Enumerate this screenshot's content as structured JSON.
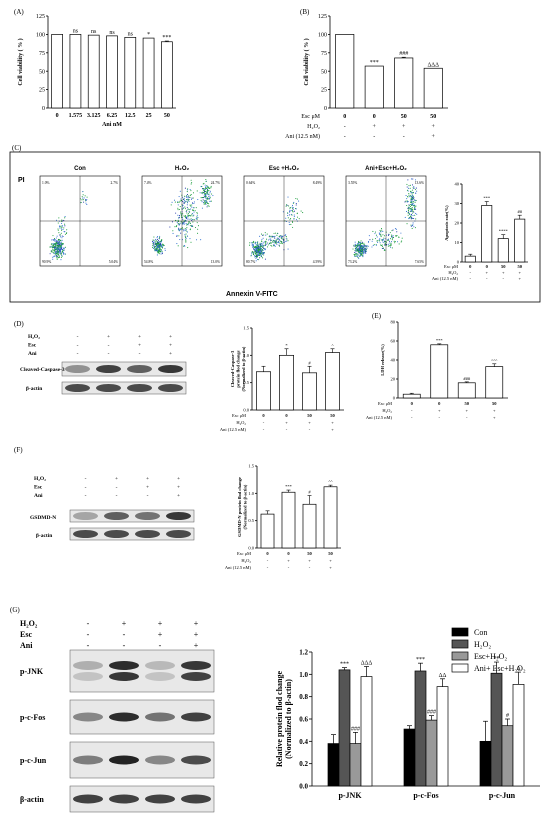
{
  "panels": {
    "A": "(A)",
    "B": "(B)",
    "C": "(C)",
    "D": "(D)",
    "E": "(E)",
    "F": "(F)",
    "G": "(G)"
  },
  "treat": {
    "esc_um": "Esc μM",
    "h2o2": "H₂O₂",
    "ani_12_5": "Ani (12.5 nM)",
    "h2o2_row": "H₂O₂",
    "esc_row": "Esc",
    "ani_row": "Ani",
    "plus": "+",
    "minus": "-"
  },
  "blots": {
    "cleaved_caspase3": "Cleaved-Caspase-3",
    "beta_actin": "β-actin",
    "gsdmd_n": "GSDMD-N",
    "p_jnk": "p-JNK",
    "p_c_fos": "p-c-Fos",
    "p_c_jun": "p-c-Jun"
  },
  "flow": {
    "titles": [
      "Con",
      "H₂O₂",
      "Esc +H₂O₂",
      "Ani+Esc+H₂O₂"
    ],
    "y_axis": "PI",
    "x_axis": "Annexin V-FITC",
    "quadrants": [
      [
        "1.0%",
        "2.7%",
        "90.9%",
        "5.04%"
      ],
      [
        "7.4%",
        "24.7%",
        "54.8%",
        "13.0%"
      ],
      [
        "0.64%",
        "8.49%",
        "80.7%",
        "4.59%"
      ],
      [
        "3.55%",
        "13.6%",
        "73.2%",
        "7.65%"
      ]
    ]
  },
  "chart_data": [
    {
      "id": "A",
      "type": "bar",
      "categories": [
        "0",
        "1.575",
        "3.125",
        "6.25",
        "12.5",
        "25",
        "50"
      ],
      "values": [
        100,
        100,
        99,
        98,
        96,
        95,
        90
      ],
      "annotations": [
        "",
        "ns",
        "ns",
        "ns",
        "ns",
        "*",
        "***"
      ],
      "ylabel": "Cell viability ( % )",
      "xlabel": "Ani nM",
      "ylim": [
        0,
        125
      ],
      "yticks": [
        "0",
        "25",
        "50",
        "75",
        "100",
        "125"
      ]
    },
    {
      "id": "B",
      "type": "bar",
      "categories": [
        "0",
        "0",
        "50",
        "50"
      ],
      "values": [
        100,
        57,
        68,
        54
      ],
      "annotations": [
        "",
        "***",
        "###",
        "ΔΔΔ"
      ],
      "ylabel": "Cell viability ( % )",
      "row_esc": [
        "0",
        "0",
        "50",
        "50"
      ],
      "row_h2o2": [
        "-",
        "+",
        "+",
        "+"
      ],
      "row_ani": [
        "-",
        "-",
        "-",
        "+"
      ],
      "ylim": [
        0,
        125
      ],
      "yticks": [
        "0",
        "25",
        "50",
        "75",
        "100",
        "125"
      ]
    },
    {
      "id": "C",
      "type": "bar",
      "categories": [
        "0",
        "0",
        "50",
        "50"
      ],
      "values": [
        3,
        29,
        12,
        22
      ],
      "annotations": [
        "",
        "***",
        "****",
        "##"
      ],
      "ylabel": "Apoptosis rate(%)",
      "row_esc": [
        "0",
        "0",
        "50",
        "50"
      ],
      "row_h2o2": [
        "-",
        "+",
        "+",
        "+"
      ],
      "row_ani": [
        "-",
        "-",
        "-",
        "+"
      ],
      "ylim": [
        0,
        40
      ],
      "yticks": [
        "0",
        "10",
        "20",
        "30",
        "40"
      ]
    },
    {
      "id": "D",
      "type": "bar",
      "categories": [
        "0",
        "0",
        "50",
        "50"
      ],
      "values": [
        0.7,
        1.0,
        0.68,
        1.05
      ],
      "annotations": [
        "",
        "*",
        "#",
        "^"
      ],
      "ylabel": "Cleaved-Caspase-3 protein flod change (Normalized to β-actin)",
      "row_esc": [
        "0",
        "0",
        "50",
        "50"
      ],
      "row_h2o2": [
        "-",
        "+",
        "+",
        "+"
      ],
      "row_ani": [
        "-",
        "-",
        "-",
        "+"
      ],
      "ylim": [
        0,
        1.5
      ],
      "yticks": [
        "0.0",
        "0.5",
        "1.0",
        "1.5"
      ]
    },
    {
      "id": "E",
      "type": "bar",
      "categories": [
        "0",
        "0",
        "50",
        "50"
      ],
      "values": [
        4,
        56,
        16,
        33
      ],
      "annotations": [
        "",
        "***",
        "###",
        "^^^"
      ],
      "ylabel": "LDH release(%)",
      "row_esc": [
        "0",
        "0",
        "50",
        "50"
      ],
      "row_h2o2": [
        "-",
        "+",
        "+",
        "+"
      ],
      "row_ani": [
        "-",
        "-",
        "-",
        "+"
      ],
      "ylim": [
        0,
        80
      ],
      "yticks": [
        "0",
        "20",
        "40",
        "60",
        "80"
      ]
    },
    {
      "id": "F",
      "type": "bar",
      "categories": [
        "0",
        "0",
        "50",
        "50"
      ],
      "values": [
        0.62,
        1.02,
        0.8,
        1.12
      ],
      "annotations": [
        "",
        "***",
        "#",
        "^^"
      ],
      "ylabel": "GSDMD-N protein flod change (Normalized to β-actin)",
      "row_esc": [
        "0",
        "0",
        "50",
        "50"
      ],
      "row_h2o2": [
        "-",
        "+",
        "+",
        "+"
      ],
      "row_ani": [
        "-",
        "-",
        "-",
        "+"
      ],
      "ylim": [
        0,
        1.5
      ],
      "yticks": [
        "0.0",
        "0.5",
        "1.0",
        "1.5"
      ]
    },
    {
      "id": "G",
      "type": "bar",
      "categories": [
        "p-JNK",
        "p-c-Fos",
        "p-c-Jun"
      ],
      "series": [
        {
          "name": "Con",
          "values": [
            0.38,
            0.51,
            0.4
          ],
          "color": "#000000"
        },
        {
          "name": "H₂O₂",
          "values": [
            1.04,
            1.03,
            1.01
          ],
          "color": "#555555"
        },
        {
          "name": "Esc+H₂O₂",
          "values": [
            0.38,
            0.59,
            0.54
          ],
          "color": "#999999"
        },
        {
          "name": "Ani+ Esc+H₂O₂",
          "values": [
            0.98,
            0.89,
            0.91
          ],
          "color": "#ffffff"
        }
      ],
      "annotations": [
        [
          "",
          "***",
          "###",
          "ΔΔΔ"
        ],
        [
          "",
          "***",
          "###",
          "ΔΔ"
        ],
        [
          "",
          "**",
          "#",
          "Δ"
        ]
      ],
      "ylabel": "Relative protein flod change (Normalized to β-actin)",
      "ylim": [
        0,
        1.2
      ],
      "yticks": [
        "0.0",
        "0.2",
        "0.4",
        "0.6",
        "0.8",
        "1.0",
        "1.2"
      ],
      "legend": "top-right"
    }
  ]
}
